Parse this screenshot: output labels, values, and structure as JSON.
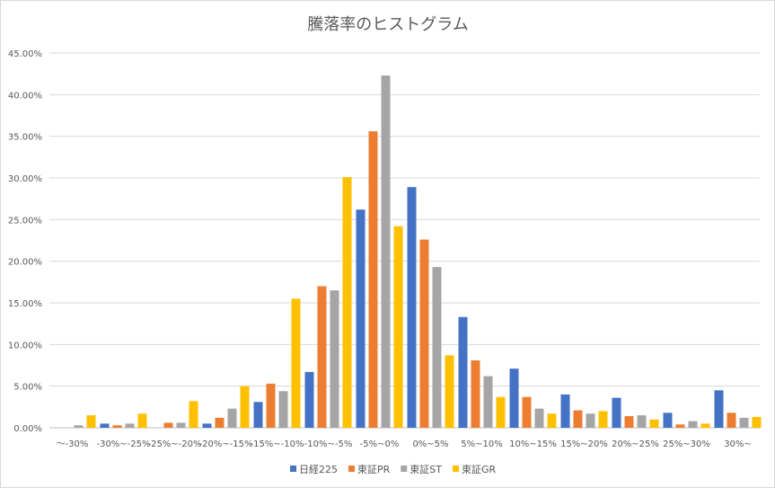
{
  "chart_data": {
    "type": "bar",
    "title": "騰落率のヒストグラム",
    "xlabel": "",
    "ylabel": "",
    "ylim": [
      0,
      45
    ],
    "yticks": [
      "0.00%",
      "5.00%",
      "10.00%",
      "15.00%",
      "20.00%",
      "25.00%",
      "30.00%",
      "35.00%",
      "40.00%",
      "45.00%"
    ],
    "grid": true,
    "legend": "bottom",
    "categories": [
      "～-30%",
      "-30%~-25%",
      "-25%~-20%",
      "-20%~-15%",
      "-15%~-10%",
      "-10%~-5%",
      "-5%~0%",
      "0%~5%",
      "5%~10%",
      "10%~15%",
      "15%~20%",
      "20%~25%",
      "25%~30%",
      "30%~"
    ],
    "series": [
      {
        "name": "日経225",
        "color": "#4472c4",
        "values": [
          0,
          0.5,
          0,
          0.5,
          3.1,
          6.7,
          26.2,
          28.9,
          13.3,
          7.1,
          4.0,
          3.6,
          1.8,
          4.5
        ]
      },
      {
        "name": "東証PR",
        "color": "#ed7d31",
        "values": [
          0,
          0.3,
          0.6,
          1.2,
          5.3,
          17.0,
          35.6,
          22.6,
          8.1,
          3.7,
          2.1,
          1.4,
          0.4,
          1.8
        ]
      },
      {
        "name": "東証ST",
        "color": "#a5a5a5",
        "values": [
          0.3,
          0.5,
          0.6,
          2.3,
          4.4,
          16.5,
          42.3,
          19.3,
          6.2,
          2.3,
          1.7,
          1.5,
          0.8,
          1.2
        ]
      },
      {
        "name": "東証GR",
        "color": "#ffc000",
        "values": [
          1.5,
          1.7,
          3.2,
          5.0,
          15.5,
          30.1,
          24.2,
          8.7,
          3.7,
          1.7,
          2.0,
          1.0,
          0.5,
          1.3
        ]
      }
    ]
  }
}
